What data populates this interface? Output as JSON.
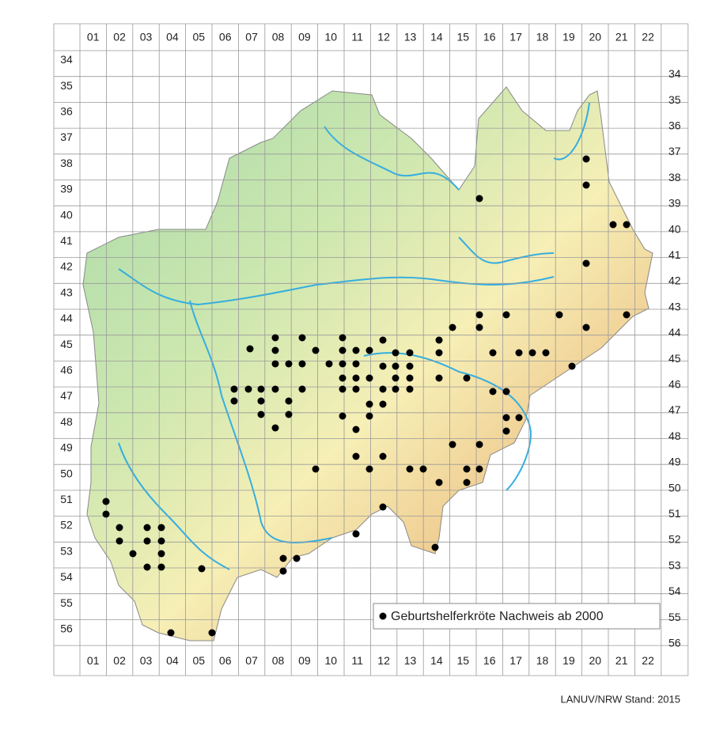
{
  "grid": {
    "columns": [
      "01",
      "02",
      "03",
      "04",
      "05",
      "06",
      "07",
      "08",
      "09",
      "10",
      "11",
      "12",
      "13",
      "14",
      "15",
      "16",
      "17",
      "18",
      "19",
      "20",
      "21",
      "22"
    ],
    "rows": [
      "34",
      "35",
      "36",
      "37",
      "38",
      "39",
      "40",
      "41",
      "42",
      "43",
      "44",
      "45",
      "46",
      "47",
      "48",
      "49",
      "50",
      "51",
      "52",
      "53",
      "54",
      "55",
      "56"
    ]
  },
  "legend": {
    "label": "Geburtshelferkröte Nachweis ab 2000"
  },
  "credit": "LANUV/NRW Stand: 2015"
}
